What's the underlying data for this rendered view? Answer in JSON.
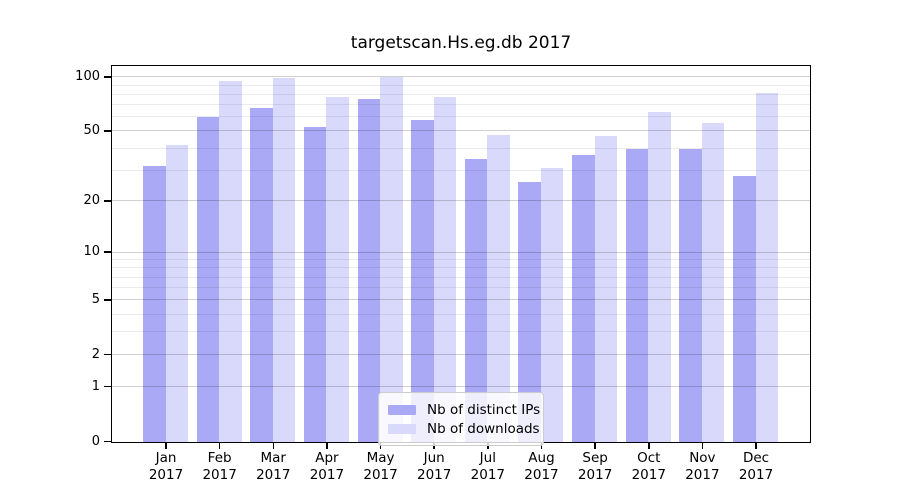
{
  "chart_data": {
    "type": "bar",
    "title": "targetscan.Hs.eg.db 2017",
    "categories": [
      "Jan",
      "Feb",
      "Mar",
      "Apr",
      "May",
      "Jun",
      "Jul",
      "Aug",
      "Sep",
      "Oct",
      "Nov",
      "Dec"
    ],
    "x_sublabel": "2017",
    "series": [
      {
        "name": "Nb of distinct IPs",
        "color": "#a9a9f5",
        "values": [
          32,
          60,
          68,
          53,
          76,
          58,
          35,
          26,
          37,
          40,
          40,
          28
        ]
      },
      {
        "name": "Nb of downloads",
        "color": "#d9d9fb",
        "values": [
          42,
          95,
          99,
          78,
          100,
          78,
          48,
          31,
          47,
          64,
          56,
          82
        ]
      }
    ],
    "y_scale": "log1p",
    "y_ticks": [
      0,
      1,
      2,
      5,
      10,
      20,
      50,
      100
    ],
    "y_minor_ticks": [
      3,
      4,
      6,
      7,
      8,
      9,
      30,
      40,
      60,
      70,
      80,
      90
    ],
    "ylim": [
      0,
      114
    ],
    "xlabel": "",
    "ylabel": "",
    "grid": "horizontal",
    "legend_position": "bottom-center",
    "axis_color": "#000000",
    "background_color": "#ffffff"
  }
}
